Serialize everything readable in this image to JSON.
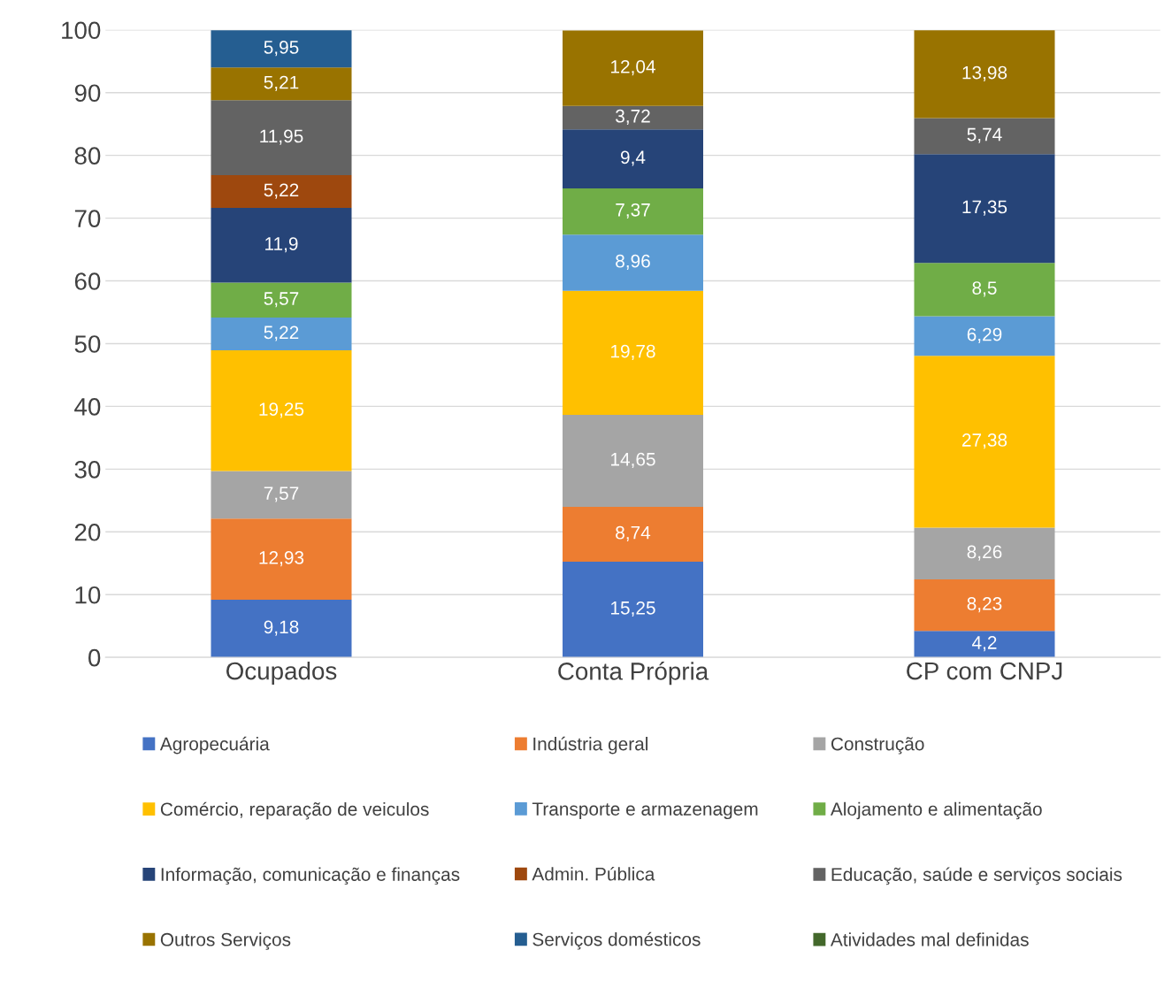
{
  "chart_data": {
    "type": "bar",
    "stacked": true,
    "categories": [
      "Ocupados",
      "Conta Própria",
      "CP com CNPJ"
    ],
    "ylim": [
      0,
      100
    ],
    "yticks": [
      0,
      10,
      20,
      30,
      40,
      50,
      60,
      70,
      80,
      90,
      100
    ],
    "grid": "y",
    "legend": "bottom",
    "series": [
      {
        "name": "Agropecuária",
        "color": "#4472c4",
        "values": [
          9.18,
          15.25,
          4.2
        ],
        "value_labels": [
          "9,18",
          "15,25",
          "4,2"
        ]
      },
      {
        "name": "Indústria geral",
        "color": "#ed7d31",
        "values": [
          12.93,
          8.74,
          8.23
        ],
        "value_labels": [
          "12,93",
          "8,74",
          "8,23"
        ]
      },
      {
        "name": "Construção",
        "color": "#a5a5a5",
        "values": [
          7.57,
          14.65,
          8.26
        ],
        "value_labels": [
          "7,57",
          "14,65",
          "8,26"
        ]
      },
      {
        "name": "Comércio, reparação de veiculos",
        "color": "#ffc000",
        "values": [
          19.25,
          19.78,
          27.38
        ],
        "value_labels": [
          "19,25",
          "19,78",
          "27,38"
        ]
      },
      {
        "name": "Transporte e armazenagem",
        "color": "#5b9bd5",
        "values": [
          5.22,
          8.96,
          6.29
        ],
        "value_labels": [
          "5,22",
          "8,96",
          "6,29"
        ]
      },
      {
        "name": "Alojamento e alimentação",
        "color": "#70ad47",
        "values": [
          5.57,
          7.37,
          8.5
        ],
        "value_labels": [
          "5,57",
          "7,37",
          "8,5"
        ]
      },
      {
        "name": "Informação, comunicação e finanças",
        "color": "#264478",
        "values": [
          11.9,
          9.4,
          17.35
        ],
        "value_labels": [
          "11,9",
          "9,4",
          "17,35"
        ]
      },
      {
        "name": "Admin. Pública",
        "color": "#9e480e",
        "values": [
          5.22,
          null,
          null
        ],
        "value_labels": [
          "5,22",
          null,
          null
        ]
      },
      {
        "name": "Educação, saúde e serviços sociais",
        "color": "#636363",
        "values": [
          11.95,
          3.72,
          5.74
        ],
        "value_labels": [
          "11,95",
          "3,72",
          "5,74"
        ]
      },
      {
        "name": "Outros Serviços",
        "color": "#997300",
        "values": [
          5.21,
          12.04,
          13.98
        ],
        "value_labels": [
          "5,21",
          "12,04",
          "13,98"
        ]
      },
      {
        "name": "Serviços domésticos",
        "color": "#255e91",
        "values": [
          5.95,
          null,
          null
        ],
        "value_labels": [
          "5,95",
          null,
          null
        ]
      },
      {
        "name": "Atividades mal definidas",
        "color": "#43682b",
        "values": [
          null,
          null,
          null
        ],
        "value_labels": [
          null,
          null,
          null
        ]
      }
    ]
  }
}
